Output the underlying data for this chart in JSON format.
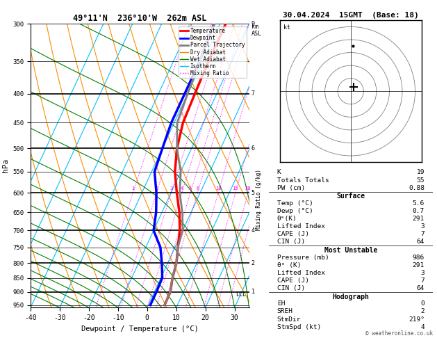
{
  "title_left": "49°11'N  236°10'W  262m ASL",
  "title_right": "30.04.2024  15GMT  (Base: 18)",
  "xlabel": "Dewpoint / Temperature (°C)",
  "ylabel_left": "hPa",
  "pressure_levels": [
    300,
    350,
    400,
    450,
    500,
    550,
    600,
    650,
    700,
    750,
    800,
    850,
    900,
    950
  ],
  "pressure_major": [
    300,
    400,
    500,
    600,
    700,
    800,
    900
  ],
  "temp_ticks": [
    -40,
    -30,
    -20,
    -10,
    0,
    10,
    20,
    30
  ],
  "pmin": 300,
  "pmax": 960,
  "tmin": -40,
  "tmax": 35,
  "background_color": "#ffffff",
  "temp_profile": {
    "temps": [
      -18,
      -18,
      -17.5,
      -17,
      -15,
      -12,
      -8,
      -4,
      -1,
      1,
      3,
      4,
      5.5,
      5.6
    ],
    "pressures": [
      300,
      350,
      400,
      450,
      500,
      550,
      600,
      650,
      700,
      750,
      800,
      850,
      900,
      950
    ],
    "color": "#ff0000",
    "linewidth": 2.5
  },
  "dewpoint_profile": {
    "temps": [
      -22,
      -21,
      -21,
      -21,
      -20,
      -19,
      -15,
      -12,
      -10,
      -5,
      -2,
      0.5,
      0.7,
      0.7
    ],
    "pressures": [
      300,
      350,
      400,
      450,
      500,
      550,
      600,
      650,
      700,
      750,
      800,
      850,
      900,
      950
    ],
    "color": "#0000ff",
    "linewidth": 2.5
  },
  "parcel_profile": {
    "temps": [
      -22,
      -21,
      -20,
      -19,
      -15,
      -10,
      -7,
      -3,
      0,
      1,
      3,
      4,
      5.5,
      5.6
    ],
    "pressures": [
      300,
      350,
      400,
      450,
      500,
      550,
      600,
      650,
      700,
      750,
      800,
      850,
      900,
      950
    ],
    "color": "#808080",
    "linewidth": 2.0
  },
  "isotherm_color": "#00bfff",
  "isotherm_linewidth": 0.8,
  "dry_adiabat_color": "#ff8c00",
  "wet_adiabat_color": "#008000",
  "mixing_ratio_color": "#ff00ff",
  "mixing_ratio_values": [
    1,
    2,
    3,
    4,
    5,
    6,
    10,
    15,
    20,
    25
  ],
  "lcl_pressure": 910,
  "lcl_label": "LCL",
  "surface_data": {
    "K": 19,
    "Totals_Totals": 55,
    "PW_cm": 0.88,
    "Temp_C": 5.6,
    "Dewp_C": 0.7,
    "theta_e_K": 291,
    "Lifted_Index": 3,
    "CAPE_J": 7,
    "CIN_J": 64
  },
  "most_unstable_data": {
    "Pressure_mb": 986,
    "theta_e_K": 291,
    "Lifted_Index": 3,
    "CAPE_J": 7,
    "CIN_J": 64
  },
  "hodograph_data": {
    "EH": 0,
    "SREH": 2,
    "StmDir": 219,
    "StmSpd_kt": 4
  },
  "skew_factor": 0.6,
  "website": "© weatheronline.co.uk"
}
